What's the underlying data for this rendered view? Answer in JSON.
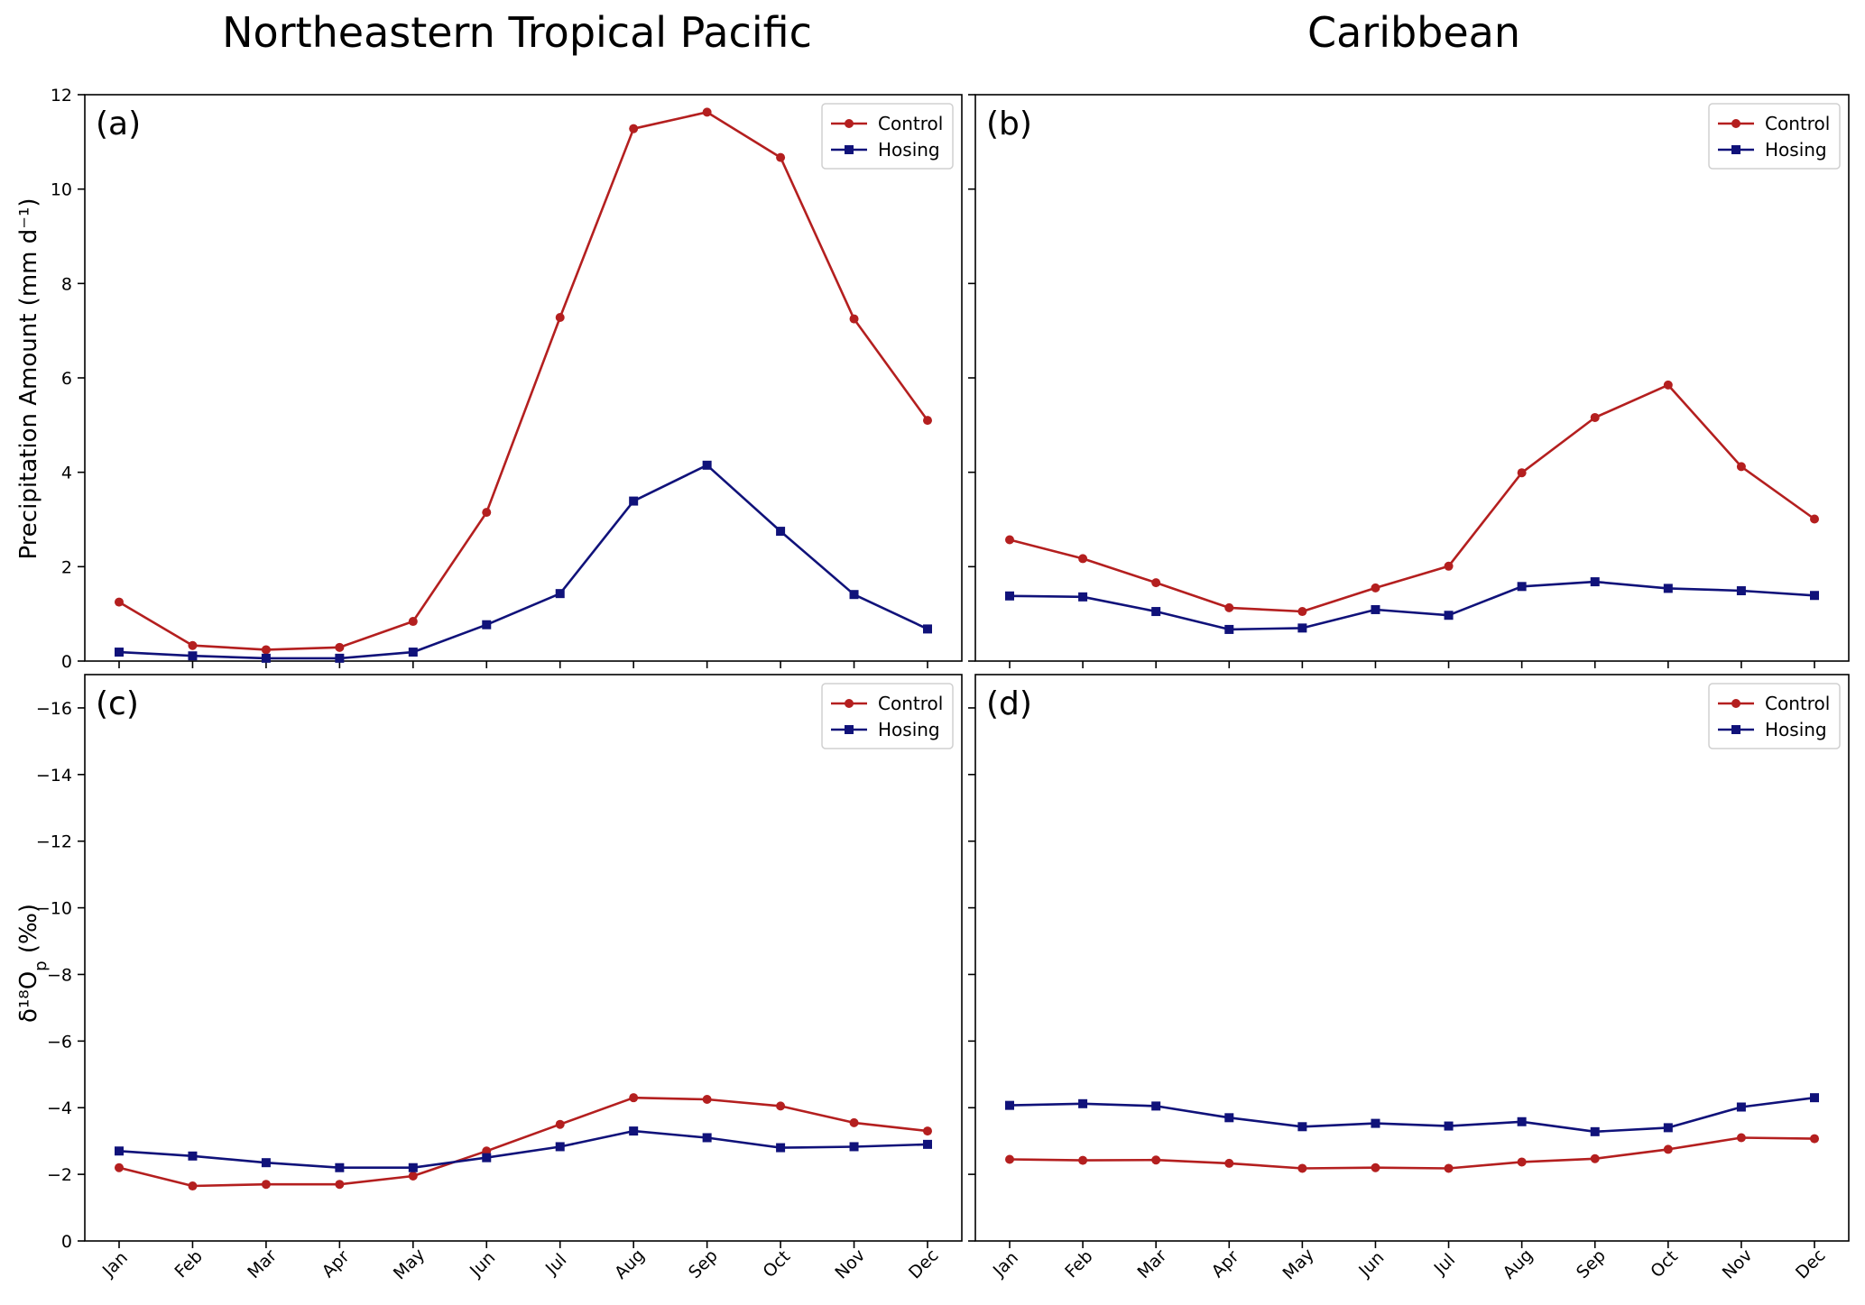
{
  "figure": {
    "column_titles": [
      "Northeastern Tropical Pacific",
      "Caribbean"
    ],
    "y_labels": {
      "top": "Precipitation Amount (mm d⁻¹)",
      "bottom_main": "δ¹⁸O",
      "bottom_sub": "p",
      "bottom_unit": " (‰)"
    }
  },
  "colors": {
    "control": "#b41f1f",
    "hosing": "#10127a"
  },
  "chart_data": [
    {
      "type": "line",
      "panel_label": "(a)",
      "x": [
        "Jan",
        "Feb",
        "Mar",
        "Apr",
        "May",
        "Jun",
        "Jul",
        "Aug",
        "Sep",
        "Oct",
        "Nov",
        "Dec"
      ],
      "ylim": [
        0,
        12
      ],
      "yticks": [
        0,
        2,
        4,
        6,
        8,
        10,
        12
      ],
      "ytick_labels": [
        "0",
        "2",
        "4",
        "6",
        "8",
        "10",
        "12"
      ],
      "show_xticklabels": false,
      "show_ytick_labels": true,
      "legend": "top-right",
      "series": [
        {
          "name": "Control",
          "marker": "circle",
          "color_key": "control",
          "values": [
            1.25,
            0.33,
            0.24,
            0.29,
            0.84,
            3.15,
            7.28,
            11.28,
            11.63,
            10.67,
            7.25,
            5.1
          ]
        },
        {
          "name": "Hosing",
          "marker": "square",
          "color_key": "hosing",
          "values": [
            0.19,
            0.11,
            0.06,
            0.06,
            0.19,
            0.77,
            1.43,
            3.39,
            4.15,
            2.75,
            1.41,
            0.68
          ]
        }
      ]
    },
    {
      "type": "line",
      "panel_label": "(b)",
      "x": [
        "Jan",
        "Feb",
        "Mar",
        "Apr",
        "May",
        "Jun",
        "Jul",
        "Aug",
        "Sep",
        "Oct",
        "Nov",
        "Dec"
      ],
      "ylim": [
        0,
        12
      ],
      "yticks": [
        0,
        2,
        4,
        6,
        8,
        10,
        12
      ],
      "ytick_labels": [
        "0",
        "2",
        "4",
        "6",
        "8",
        "10",
        "12"
      ],
      "show_xticklabels": false,
      "show_ytick_labels": false,
      "legend": "top-right",
      "series": [
        {
          "name": "Control",
          "marker": "circle",
          "color_key": "control",
          "values": [
            2.57,
            2.17,
            1.66,
            1.13,
            1.05,
            1.55,
            2.01,
            3.99,
            5.16,
            5.85,
            4.12,
            3.01
          ]
        },
        {
          "name": "Hosing",
          "marker": "square",
          "color_key": "hosing",
          "values": [
            1.38,
            1.36,
            1.05,
            0.67,
            0.7,
            1.09,
            0.97,
            1.58,
            1.68,
            1.54,
            1.49,
            1.39
          ]
        }
      ]
    },
    {
      "type": "line",
      "panel_label": "(c)",
      "x": [
        "Jan",
        "Feb",
        "Mar",
        "Apr",
        "May",
        "Jun",
        "Jul",
        "Aug",
        "Sep",
        "Oct",
        "Nov",
        "Dec"
      ],
      "ylim": [
        0,
        -17
      ],
      "yticks": [
        0,
        -2,
        -4,
        -6,
        -8,
        -10,
        -12,
        -14,
        -16
      ],
      "ytick_labels": [
        "0",
        "−2",
        "−4",
        "−6",
        "−8",
        "−10",
        "−12",
        "−14",
        "−16"
      ],
      "show_xticklabels": true,
      "show_ytick_labels": true,
      "legend": "top-right",
      "series": [
        {
          "name": "Control",
          "marker": "circle",
          "color_key": "control",
          "values": [
            -2.2,
            -1.65,
            -1.7,
            -1.7,
            -1.95,
            -2.7,
            -3.5,
            -4.3,
            -4.25,
            -4.05,
            -3.55,
            -3.3
          ]
        },
        {
          "name": "Hosing",
          "marker": "square",
          "color_key": "hosing",
          "values": [
            -2.7,
            -2.55,
            -2.35,
            -2.2,
            -2.2,
            -2.5,
            -2.83,
            -3.3,
            -3.1,
            -2.8,
            -2.83,
            -2.9
          ]
        }
      ]
    },
    {
      "type": "line",
      "panel_label": "(d)",
      "x": [
        "Jan",
        "Feb",
        "Mar",
        "Apr",
        "May",
        "Jun",
        "Jul",
        "Aug",
        "Sep",
        "Oct",
        "Nov",
        "Dec"
      ],
      "ylim": [
        0,
        -17
      ],
      "yticks": [
        0,
        -2,
        -4,
        -6,
        -8,
        -10,
        -12,
        -14,
        -16
      ],
      "ytick_labels": [
        "0",
        "−2",
        "−4",
        "−6",
        "−8",
        "−10",
        "−12",
        "−14",
        "−16"
      ],
      "show_xticklabels": true,
      "show_ytick_labels": false,
      "legend": "top-right",
      "series": [
        {
          "name": "Control",
          "marker": "circle",
          "color_key": "control",
          "values": [
            -2.45,
            -2.42,
            -2.43,
            -2.33,
            -2.18,
            -2.2,
            -2.18,
            -2.37,
            -2.47,
            -2.75,
            -3.1,
            -3.07
          ]
        },
        {
          "name": "Hosing",
          "marker": "square",
          "color_key": "hosing",
          "values": [
            -4.07,
            -4.12,
            -4.05,
            -3.7,
            -3.43,
            -3.53,
            -3.45,
            -3.58,
            -3.28,
            -3.4,
            -4.02,
            -4.3
          ]
        }
      ]
    }
  ]
}
